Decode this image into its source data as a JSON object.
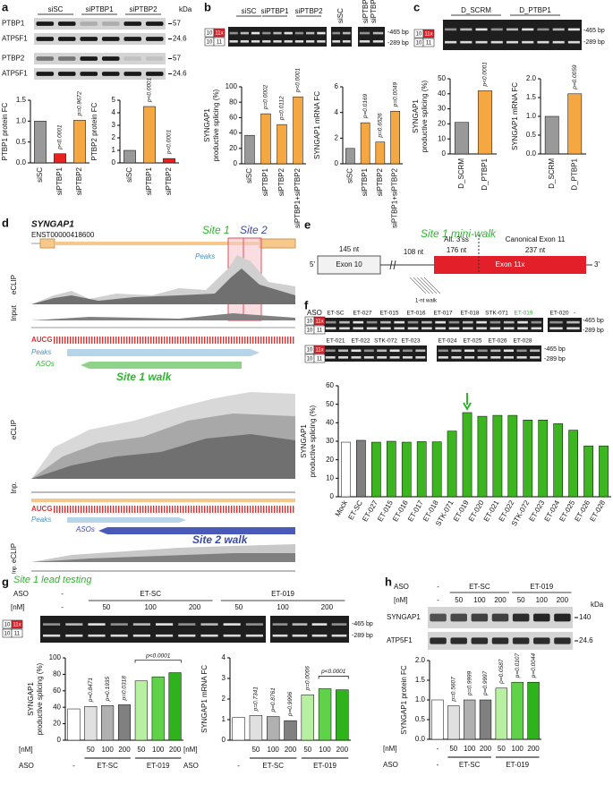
{
  "panel_letters": [
    "a",
    "b",
    "c",
    "d",
    "e",
    "f",
    "g",
    "h"
  ],
  "exon_inc": [
    "10",
    "11x"
  ],
  "exon_skip": [
    "10",
    "11"
  ],
  "bp": [
    "-465 bp",
    "-289 bp"
  ],
  "a": {
    "lanes": [
      "siSC",
      "siPTBP1",
      "siPTBP2"
    ],
    "kda": "kDa",
    "blots": [
      {
        "protein": "PTBP1",
        "size": "57"
      },
      {
        "protein": "ATP5F1",
        "size": "24.6"
      },
      {
        "protein": "PTBP2",
        "size": "57"
      },
      {
        "protein": "ATP5F1",
        "size": "24.6"
      }
    ]
  },
  "b": {
    "lanes": [
      "siSC",
      "siPTBP1",
      "siPTBP2",
      "siSC",
      "siPTBP1+",
      "siPTBP2"
    ]
  },
  "c": {
    "lanes": [
      "D_SCRM",
      "D_PTBP1"
    ]
  },
  "d": {
    "gene": "SYNGAP1",
    "transcript": "ENST00000418600",
    "site1": "Site 1",
    "site2": "Site 2",
    "peaks": "Peaks",
    "eclip": "eCLIP",
    "input": "Input",
    "inp": "Inp.",
    "aucg": "AUCG",
    "asos": "ASOs",
    "walk1": "Site 1 walk",
    "walk2": "Site 2 walk"
  },
  "e": {
    "title": "Site 1 mini-walk",
    "five": "5'",
    "three": "3'",
    "exon10": "Exon 10",
    "exon11x": "Exon 11x",
    "len1": "145 nt",
    "len2": "108 nt",
    "len3": "176 nt",
    "len4": "237 nt",
    "alt": "Alt. 3'ss",
    "canon": "Canonical Exon 11",
    "walk": "1-nt walk"
  },
  "f": {
    "aso": "ASO",
    "row1": [
      "ET-SC",
      "ET-027",
      "ET-015",
      "ET-016",
      "ET-017",
      "ET-018",
      "STK-071",
      "ET-019",
      "ET-020",
      "-"
    ],
    "row2": [
      "ET-021",
      "ET-022",
      "STK-072",
      "ET-023",
      "ET-024",
      "ET-025",
      "ET-026",
      "ET-028"
    ]
  },
  "g": {
    "title": "Site 1 lead testing",
    "aso": "ASO",
    "nm": "[nM]",
    "groups": [
      "-",
      "ET-SC",
      "ET-019"
    ],
    "doses": [
      "-",
      "50",
      "100",
      "200",
      "50",
      "100",
      "200"
    ]
  },
  "h": {
    "aso": "ASO",
    "nm": "[nM]",
    "groups": [
      "-",
      "ET-SC",
      "ET-019"
    ],
    "doses": [
      "-",
      "50",
      "100",
      "200",
      "50",
      "100",
      "200"
    ],
    "kda": "kDa",
    "blots": [
      {
        "protein": "SYNGAP1",
        "size": "140"
      },
      {
        "protein": "ATP5F1",
        "size": "24.6"
      }
    ]
  },
  "chart_data": [
    {
      "type": "bar",
      "ylabel": [
        "PTBP1 protein FC"
      ],
      "categories": [
        "siSC",
        "siPTBP1",
        "siPTBP2"
      ],
      "values": [
        1.0,
        0.22,
        1.02
      ],
      "colors": [
        "#999999",
        "#e8231f",
        "#f5a742"
      ],
      "ylim": [
        0,
        1.5
      ],
      "yticks": [
        {
          "value": 0,
          "label": "0.0"
        },
        {
          "value": 0.5,
          "label": "0.5"
        },
        {
          "value": 1,
          "label": "1.0"
        },
        {
          "value": 1.5,
          "label": "1.5"
        }
      ],
      "pvalues": [
        null,
        "p<0.0001",
        "p=0.9672"
      ]
    },
    {
      "type": "bar",
      "ylabel": [
        "PTBP2 protein FC"
      ],
      "categories": [
        "siSC",
        "siPTBP1",
        "siPTBP2"
      ],
      "values": [
        1.0,
        4.5,
        0.35
      ],
      "colors": [
        "#999999",
        "#f5a742",
        "#e8231f"
      ],
      "ylim": [
        0,
        5
      ],
      "yticks": [
        0,
        1,
        2,
        3,
        4,
        5
      ],
      "pvalues": [
        null,
        "p<0.0001",
        "p<0.0001"
      ]
    },
    {
      "type": "bar",
      "ylabel": [
        "SYNGAP1",
        "productive splicing (%)"
      ],
      "categories": [
        "siSC",
        "siPTBP1",
        "siPTBP2",
        "siPTBP1+siPTBP2"
      ],
      "values": [
        37,
        65,
        51,
        87
      ],
      "colors": [
        "#999999",
        "#f5a742",
        "#f5a742",
        "#f5a742"
      ],
      "ylim": [
        0,
        100
      ],
      "yticks": [
        0,
        20,
        40,
        60,
        80,
        100
      ],
      "pvalues": [
        null,
        "p=0.0002",
        "p=0.0112",
        "p<0.0001"
      ]
    },
    {
      "type": "bar",
      "ylabel": [
        "SYNGAP1 mRNA FC"
      ],
      "categories": [
        "siSC",
        "siPTBP1",
        "siPTBP2",
        "siPTBP1+siPTBP2"
      ],
      "values": [
        1.2,
        3.2,
        1.7,
        4.1
      ],
      "colors": [
        "#999999",
        "#f5a742",
        "#f5a742",
        "#f5a742"
      ],
      "ylim": [
        0,
        6
      ],
      "yticks": [
        0,
        2,
        4,
        6
      ],
      "pvalues": [
        null,
        "p=0.0169",
        "p=0.6526",
        "p=0.0049"
      ]
    },
    {
      "type": "bar",
      "ylabel": [
        "SYNGAP1",
        "productive splicing (%)"
      ],
      "categories": [
        "D_SCRM",
        "D_PTBP1"
      ],
      "values": [
        21,
        42
      ],
      "colors": [
        "#999999",
        "#f5a742"
      ],
      "ylim": [
        0,
        50
      ],
      "yticks": [
        0,
        10,
        20,
        30,
        40,
        50
      ],
      "pvalues": [
        null,
        "p<0.0001"
      ]
    },
    {
      "type": "bar",
      "ylabel": [
        "SYNGAP1 mRNA FC"
      ],
      "categories": [
        "D_SCRM",
        "D_PTBP1"
      ],
      "values": [
        1.0,
        1.6
      ],
      "colors": [
        "#999999",
        "#f5a742"
      ],
      "ylim": [
        0,
        2
      ],
      "yticks": [
        {
          "value": 0,
          "label": "0.0"
        },
        {
          "value": 0.5,
          "label": "0.5"
        },
        {
          "value": 1,
          "label": "1.0"
        },
        {
          "value": 1.5,
          "label": "1.5"
        },
        {
          "value": 2,
          "label": "2.0"
        }
      ],
      "pvalues": [
        null,
        "p=0.0059"
      ]
    },
    {
      "type": "bar",
      "ylabel": [
        "SYNGAP1",
        "productive splicing (%)"
      ],
      "categories": [
        "Mock",
        "ET-SC",
        "ET-027",
        "ET-015",
        "ET-016",
        "ET-017",
        "ET-018",
        "STK-071",
        "ET-019",
        "ET-020",
        "ET-021",
        "ET-022",
        "STK-072",
        "ET-023",
        "ET-024",
        "ET-025",
        "ET-026",
        "ET-028"
      ],
      "values": [
        29.5,
        30.5,
        29.5,
        30,
        29.5,
        29.8,
        29.7,
        35.5,
        45.5,
        43.5,
        44,
        44,
        41.5,
        41.5,
        39.5,
        36,
        27.5,
        27.5
      ],
      "colors": [
        "#ffffff",
        "#808080",
        "#3cb521",
        "#3cb521",
        "#3cb521",
        "#3cb521",
        "#3cb521",
        "#3cb521",
        "#3cb521",
        "#3cb521",
        "#3cb521",
        "#3cb521",
        "#3cb521",
        "#3cb521",
        "#3cb521",
        "#3cb521",
        "#3cb521",
        "#3cb521"
      ],
      "ylim": [
        0,
        60
      ],
      "yticks": [
        0,
        10,
        20,
        30,
        40,
        50,
        60
      ]
    },
    {
      "type": "bar",
      "ylabel": [
        "SYNGAP1",
        "productive splicing (%)"
      ],
      "categories": [
        null,
        "50",
        "100",
        "200",
        "50",
        "100",
        "200"
      ],
      "groups": [
        "-",
        "ET-SC",
        "ET-SC",
        "ET-SC",
        "ET-019",
        "ET-019",
        "ET-019"
      ],
      "row_labels": [
        "[nM]",
        "ASO"
      ],
      "values": [
        38,
        41,
        42,
        43,
        72,
        77,
        82
      ],
      "colors": [
        "#ffffff",
        "#e0e0e0",
        "#b0b0b0",
        "#808080",
        "#b7f0a0",
        "#5fd24a",
        "#2fb31c"
      ],
      "ylim": [
        0,
        100
      ],
      "yticks": [
        0,
        20,
        40,
        60,
        80,
        100
      ],
      "pvalues": [
        null,
        "p=0.8471",
        "p=0.1935",
        "p=0.0318",
        null,
        null,
        null
      ],
      "bracket_label": "p<0.0001"
    },
    {
      "type": "bar",
      "ylabel": [
        "SYNGAP1 mRNA FC"
      ],
      "categories": [
        null,
        "50",
        "100",
        "200",
        "50",
        "100",
        "200"
      ],
      "groups": [
        "-",
        "ET-SC",
        "ET-SC",
        "ET-SC",
        "ET-019",
        "ET-019",
        "ET-019"
      ],
      "row_labels": [
        "[nM]",
        "ASO"
      ],
      "values": [
        1.1,
        1.2,
        1.15,
        0.95,
        2.2,
        2.5,
        2.45
      ],
      "colors": [
        "#ffffff",
        "#e0e0e0",
        "#b0b0b0",
        "#808080",
        "#b7f0a0",
        "#5fd24a",
        "#2fb31c"
      ],
      "ylim": [
        0,
        4
      ],
      "yticks": [
        0,
        1,
        2,
        3,
        4
      ],
      "pvalues": [
        null,
        "p=0.7341",
        "p=0.8761",
        "p=0.9996",
        "p=0.0006",
        null,
        null
      ],
      "bracket_label": "p<0.0001"
    },
    {
      "type": "bar",
      "ylabel": [
        "SYNGAP1 protein FC"
      ],
      "categories": [
        "-",
        "50",
        "100",
        "200",
        "50",
        "100",
        "200"
      ],
      "groups": [
        "-",
        "ET-SC",
        "ET-SC",
        "ET-SC",
        "ET-019",
        "ET-019",
        "ET-019"
      ],
      "row_labels": [
        "[nM]",
        "ASO"
      ],
      "values": [
        1.0,
        0.85,
        1.0,
        1.0,
        1.3,
        1.45,
        1.45
      ],
      "colors": [
        "#ffffff",
        "#e0e0e0",
        "#b0b0b0",
        "#808080",
        "#b7f0a0",
        "#5fd24a",
        "#2fb31c"
      ],
      "ylim": [
        0,
        2
      ],
      "yticks": [
        {
          "value": 0,
          "label": "0.0"
        },
        {
          "value": 0.5,
          "label": "0.5"
        },
        {
          "value": 1,
          "label": "1.0"
        },
        {
          "value": 1.5,
          "label": "1.5"
        },
        {
          "value": 2,
          "label": "2.0"
        }
      ],
      "pvalues": [
        null,
        "p=0.5607",
        "p=0.9999",
        "p=0.9997",
        "p=0.0587",
        "p=0.0107",
        "p=0.0044"
      ]
    }
  ]
}
